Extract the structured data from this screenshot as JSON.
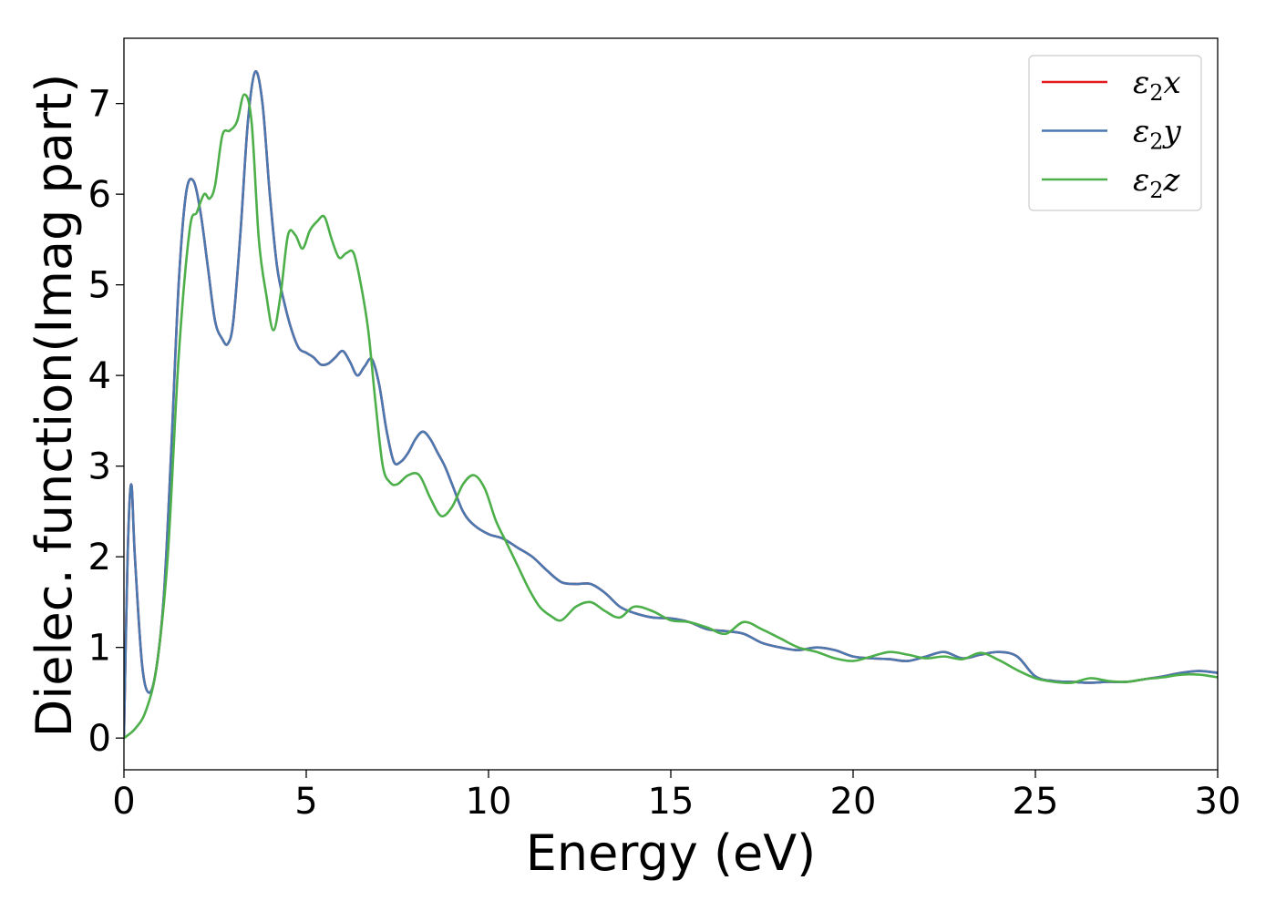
{
  "chart_data": {
    "type": "line",
    "xlabel": "Energy (eV)",
    "ylabel": "Dielec. function(Imag part)",
    "xlim": [
      0,
      30
    ],
    "ylim": [
      -0.35,
      7.72
    ],
    "xticks": [
      "0",
      "5",
      "10",
      "15",
      "20",
      "25",
      "30"
    ],
    "yticks": [
      "0",
      "1",
      "2",
      "3",
      "4",
      "5",
      "6",
      "7"
    ],
    "grid": false,
    "legend_position": "top-right",
    "series": [
      {
        "name": "ε2x",
        "legend_base": "ε",
        "legend_sub": "2",
        "legend_suffix": "x",
        "color": "#e41a1c",
        "x": [
          0,
          0.1,
          0.2,
          0.3,
          0.5,
          0.7,
          0.9,
          1.1,
          1.3,
          1.5,
          1.7,
          1.9,
          2.1,
          2.3,
          2.5,
          2.7,
          2.85,
          3.0,
          3.2,
          3.4,
          3.6,
          3.8,
          4.0,
          4.2,
          4.4,
          4.6,
          4.8,
          5.0,
          5.2,
          5.4,
          5.6,
          5.8,
          6.0,
          6.2,
          6.4,
          6.6,
          6.8,
          7.0,
          7.2,
          7.4,
          7.6,
          7.8,
          8.0,
          8.2,
          8.4,
          8.6,
          8.8,
          9.0,
          9.3,
          9.6,
          10.0,
          10.4,
          10.8,
          11.2,
          11.6,
          12.0,
          12.4,
          12.8,
          13.2,
          13.6,
          14.0,
          14.5,
          15.0,
          15.5,
          16.0,
          16.5,
          17.0,
          17.5,
          18.0,
          18.5,
          19.0,
          19.5,
          20.0,
          20.5,
          21.0,
          21.5,
          22.0,
          22.5,
          23.0,
          23.5,
          24.0,
          24.5,
          25.0,
          25.5,
          26.0,
          26.5,
          27.0,
          27.5,
          28.0,
          28.5,
          29.0,
          29.5,
          30.0
        ],
        "y": [
          0,
          2.0,
          2.8,
          2.0,
          0.8,
          0.5,
          0.8,
          1.6,
          3.2,
          5.0,
          6.0,
          6.15,
          5.8,
          5.2,
          4.6,
          4.4,
          4.35,
          4.6,
          5.6,
          6.8,
          7.35,
          7.0,
          6.0,
          5.2,
          4.8,
          4.5,
          4.3,
          4.25,
          4.2,
          4.12,
          4.13,
          4.2,
          4.27,
          4.15,
          4.0,
          4.1,
          4.18,
          3.9,
          3.4,
          3.05,
          3.05,
          3.15,
          3.3,
          3.38,
          3.3,
          3.15,
          3.0,
          2.8,
          2.5,
          2.35,
          2.25,
          2.2,
          2.1,
          2.0,
          1.85,
          1.72,
          1.7,
          1.7,
          1.6,
          1.45,
          1.38,
          1.33,
          1.32,
          1.28,
          1.2,
          1.18,
          1.15,
          1.05,
          1.0,
          0.97,
          1.0,
          0.97,
          0.9,
          0.88,
          0.87,
          0.85,
          0.9,
          0.95,
          0.88,
          0.92,
          0.95,
          0.9,
          0.68,
          0.63,
          0.62,
          0.61,
          0.62,
          0.62,
          0.65,
          0.68,
          0.72,
          0.74,
          0.72
        ]
      },
      {
        "name": "ε2y",
        "legend_base": "ε",
        "legend_sub": "2",
        "legend_suffix": "y",
        "color": "#4a78b0",
        "x": [
          0,
          0.1,
          0.2,
          0.3,
          0.5,
          0.7,
          0.9,
          1.1,
          1.3,
          1.5,
          1.7,
          1.9,
          2.1,
          2.3,
          2.5,
          2.7,
          2.85,
          3.0,
          3.2,
          3.4,
          3.6,
          3.8,
          4.0,
          4.2,
          4.4,
          4.6,
          4.8,
          5.0,
          5.2,
          5.4,
          5.6,
          5.8,
          6.0,
          6.2,
          6.4,
          6.6,
          6.8,
          7.0,
          7.2,
          7.4,
          7.6,
          7.8,
          8.0,
          8.2,
          8.4,
          8.6,
          8.8,
          9.0,
          9.3,
          9.6,
          10.0,
          10.4,
          10.8,
          11.2,
          11.6,
          12.0,
          12.4,
          12.8,
          13.2,
          13.6,
          14.0,
          14.5,
          15.0,
          15.5,
          16.0,
          16.5,
          17.0,
          17.5,
          18.0,
          18.5,
          19.0,
          19.5,
          20.0,
          20.5,
          21.0,
          21.5,
          22.0,
          22.5,
          23.0,
          23.5,
          24.0,
          24.5,
          25.0,
          25.5,
          26.0,
          26.5,
          27.0,
          27.5,
          28.0,
          28.5,
          29.0,
          29.5,
          30.0
        ],
        "y": [
          0,
          2.0,
          2.8,
          2.0,
          0.8,
          0.5,
          0.8,
          1.6,
          3.2,
          5.0,
          6.0,
          6.15,
          5.8,
          5.2,
          4.6,
          4.4,
          4.35,
          4.6,
          5.6,
          6.8,
          7.35,
          7.0,
          6.0,
          5.2,
          4.8,
          4.5,
          4.3,
          4.25,
          4.2,
          4.12,
          4.13,
          4.2,
          4.27,
          4.15,
          4.0,
          4.1,
          4.18,
          3.9,
          3.4,
          3.05,
          3.05,
          3.15,
          3.3,
          3.38,
          3.3,
          3.15,
          3.0,
          2.8,
          2.5,
          2.35,
          2.25,
          2.2,
          2.1,
          2.0,
          1.85,
          1.72,
          1.7,
          1.7,
          1.6,
          1.45,
          1.38,
          1.33,
          1.32,
          1.28,
          1.2,
          1.18,
          1.15,
          1.05,
          1.0,
          0.97,
          1.0,
          0.97,
          0.9,
          0.88,
          0.87,
          0.85,
          0.9,
          0.95,
          0.88,
          0.92,
          0.95,
          0.9,
          0.68,
          0.63,
          0.62,
          0.61,
          0.62,
          0.62,
          0.65,
          0.68,
          0.72,
          0.74,
          0.72
        ]
      },
      {
        "name": "ε2z",
        "legend_base": "ε",
        "legend_sub": "2",
        "legend_suffix": "z",
        "color": "#4daf4a",
        "x": [
          0,
          0.3,
          0.6,
          0.9,
          1.2,
          1.5,
          1.8,
          2.0,
          2.2,
          2.35,
          2.5,
          2.7,
          2.9,
          3.1,
          3.3,
          3.5,
          3.7,
          3.9,
          4.1,
          4.3,
          4.5,
          4.7,
          4.9,
          5.1,
          5.3,
          5.5,
          5.7,
          5.9,
          6.1,
          6.3,
          6.5,
          6.7,
          6.9,
          7.1,
          7.3,
          7.5,
          7.8,
          8.1,
          8.4,
          8.7,
          9.0,
          9.3,
          9.6,
          9.9,
          10.2,
          10.5,
          10.8,
          11.1,
          11.4,
          11.7,
          12.0,
          12.4,
          12.8,
          13.2,
          13.6,
          14.0,
          14.5,
          15.0,
          15.5,
          16.0,
          16.5,
          17.0,
          17.5,
          18.0,
          18.5,
          19.0,
          19.5,
          20.0,
          20.5,
          21.0,
          21.5,
          22.0,
          22.5,
          23.0,
          23.5,
          24.0,
          24.5,
          25.0,
          25.5,
          26.0,
          26.5,
          27.0,
          27.5,
          28.0,
          28.5,
          29.0,
          29.5,
          30.0
        ],
        "y": [
          0.0,
          0.1,
          0.3,
          0.8,
          2.0,
          4.2,
          5.6,
          5.8,
          6.0,
          5.95,
          6.1,
          6.65,
          6.7,
          6.8,
          7.1,
          6.8,
          5.5,
          4.9,
          4.5,
          4.9,
          5.55,
          5.55,
          5.4,
          5.6,
          5.7,
          5.75,
          5.5,
          5.3,
          5.35,
          5.35,
          5.0,
          4.5,
          3.7,
          3.0,
          2.82,
          2.8,
          2.9,
          2.9,
          2.65,
          2.45,
          2.55,
          2.8,
          2.9,
          2.75,
          2.4,
          2.15,
          1.9,
          1.65,
          1.45,
          1.35,
          1.3,
          1.45,
          1.5,
          1.4,
          1.33,
          1.45,
          1.4,
          1.3,
          1.28,
          1.22,
          1.15,
          1.28,
          1.2,
          1.1,
          1.0,
          0.95,
          0.88,
          0.85,
          0.9,
          0.95,
          0.92,
          0.88,
          0.9,
          0.87,
          0.94,
          0.86,
          0.75,
          0.66,
          0.62,
          0.61,
          0.66,
          0.63,
          0.62,
          0.65,
          0.67,
          0.7,
          0.7,
          0.67
        ]
      }
    ]
  }
}
